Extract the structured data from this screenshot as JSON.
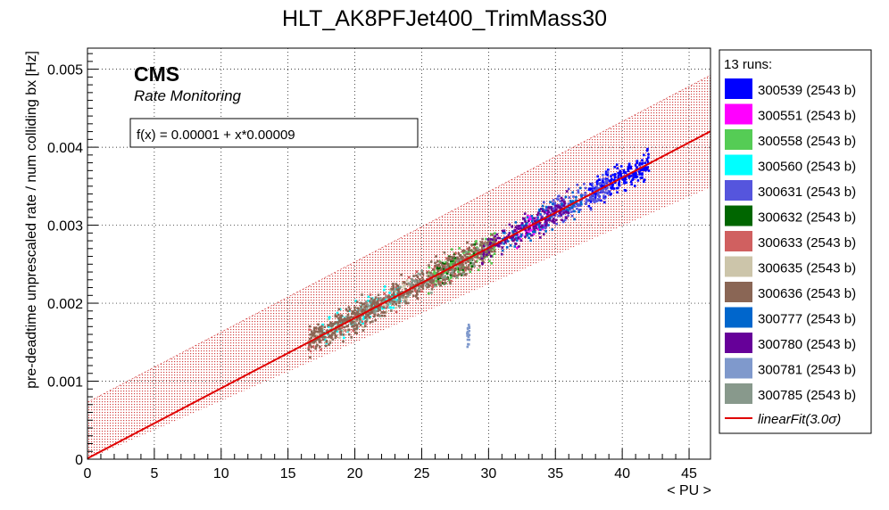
{
  "chart_data": {
    "type": "scatter",
    "title": "HLT_AK8PFJet400_TrimMass30",
    "xlabel": "< PU >",
    "ylabel": "pre-deadtime unprescaled rate / num colliding bx [Hz]",
    "xlim": [
      0,
      46.6
    ],
    "ylim": [
      0,
      0.00527
    ],
    "xticks": [
      0,
      5,
      10,
      15,
      20,
      25,
      30,
      35,
      40,
      45
    ],
    "xtick_labels": [
      "0",
      "5",
      "10",
      "15",
      "20",
      "25",
      "30",
      "35",
      "40",
      "45"
    ],
    "yticks": [
      0,
      0.001,
      0.002,
      0.003,
      0.004,
      0.005
    ],
    "ytick_labels": [
      "0",
      "0.001",
      "0.002",
      "0.003",
      "0.004",
      "0.005"
    ],
    "grid": true,
    "legend_position": "right",
    "watermark": {
      "main": "CMS",
      "sub": "Rate Monitoring"
    },
    "fit_box": "f(x) = 0.00001 + x*0.00009",
    "fit": {
      "intercept": 1e-05,
      "slope": 9e-05,
      "band": 0.00072,
      "x_range": [
        0,
        46.6
      ],
      "color": "#e00000"
    },
    "legend_header": "13 runs:",
    "fit_legend_label": "linearFit(3.0",
    "fit_legend_sigma": "σ",
    "fit_legend_close": ")",
    "series": [
      {
        "name": "300539 (2543 b)",
        "color": "#0000ff",
        "x_range": [
          37.5,
          42.0
        ],
        "count": 220
      },
      {
        "name": "300551 (2543 b)",
        "color": "#ff00ff",
        "x_range": [
          32.0,
          34.5
        ],
        "count": 60
      },
      {
        "name": "300558 (2543 b)",
        "color": "#55cc55",
        "x_range": [
          25.5,
          30.5
        ],
        "count": 160
      },
      {
        "name": "300560 (2543 b)",
        "color": "#00ffff",
        "x_range": [
          17.5,
          23.5
        ],
        "count": 130
      },
      {
        "name": "300631 (2543 b)",
        "color": "#5555dd",
        "x_range": [
          34.0,
          39.0
        ],
        "count": 170
      },
      {
        "name": "300632 (2543 b)",
        "color": "#006600",
        "x_range": [
          26.0,
          29.0
        ],
        "count": 50
      },
      {
        "name": "300633 (2543 b)",
        "color": "#d06060",
        "x_range": [
          16.5,
          30.0
        ],
        "count": 120
      },
      {
        "name": "300635 (2543 b)",
        "color": "#ccc5aa",
        "x_range": [
          16.5,
          24.0
        ],
        "count": 90
      },
      {
        "name": "300636 (2543 b)",
        "color": "#8a6655",
        "x_range": [
          16.5,
          30.5
        ],
        "count": 650
      },
      {
        "name": "300777 (2543 b)",
        "color": "#0066cc",
        "x_range": [
          31.0,
          37.0
        ],
        "count": 110
      },
      {
        "name": "300780 (2543 b)",
        "color": "#660099",
        "x_range": [
          29.5,
          36.0
        ],
        "count": 170
      },
      {
        "name": "300781 (2543 b)",
        "color": "#7f99cc",
        "x_range": [
          28.4,
          28.6
        ],
        "count": 20
      },
      {
        "name": "300785 (2543 b)",
        "color": "#88998c",
        "x_range": [
          20.0,
          30.0
        ],
        "count": 80
      }
    ]
  }
}
